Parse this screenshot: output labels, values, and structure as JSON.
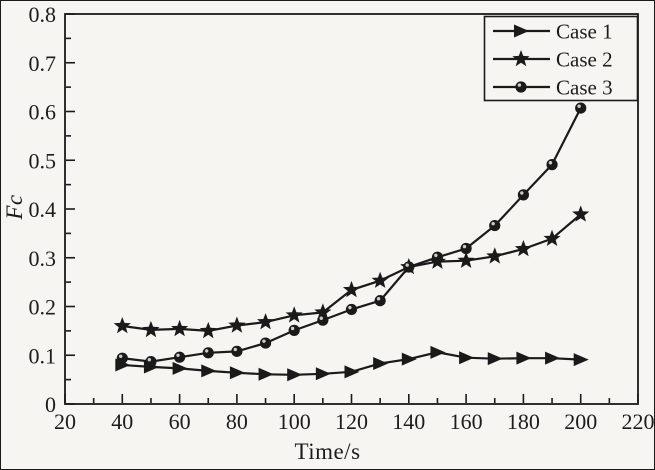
{
  "figure": {
    "background": "#f7f5f1",
    "ink_color": "#1a1a1a",
    "xlabel": "Time/s",
    "ylabel": "Fc"
  },
  "chart_data": {
    "type": "line",
    "title": "",
    "xlabel": "Time/s",
    "ylabel": "Fc",
    "xlim": [
      20,
      220
    ],
    "ylim": [
      0,
      0.8
    ],
    "x_major_tick": 20,
    "x_minor_tick": 10,
    "y_major_tick": 0.1,
    "y_minor_tick": 0.05,
    "x_tick_labels": [
      "20",
      "40",
      "60",
      "80",
      "100",
      "120",
      "140",
      "160",
      "180",
      "200",
      "220"
    ],
    "y_tick_labels": [
      "0",
      "0.1",
      "0.2",
      "0.3",
      "0.4",
      "0.5",
      "0.6",
      "0.7",
      "0.8"
    ],
    "grid": false,
    "legend_position": "top-right",
    "x": [
      40,
      50,
      60,
      70,
      80,
      90,
      100,
      110,
      120,
      130,
      140,
      150,
      160,
      170,
      180,
      190,
      200
    ],
    "series": [
      {
        "name": "Case 1",
        "marker": "triangle-right",
        "values": [
          0.08,
          0.076,
          0.073,
          0.068,
          0.064,
          0.061,
          0.06,
          0.062,
          0.066,
          0.083,
          0.092,
          0.106,
          0.095,
          0.093,
          0.094,
          0.094,
          0.091
        ]
      },
      {
        "name": "Case 2",
        "marker": "star",
        "values": [
          0.16,
          0.152,
          0.154,
          0.15,
          0.161,
          0.168,
          0.182,
          0.188,
          0.234,
          0.253,
          0.281,
          0.292,
          0.294,
          0.303,
          0.318,
          0.339,
          0.389
        ]
      },
      {
        "name": "Case 3",
        "marker": "sphere",
        "values": [
          0.094,
          0.087,
          0.096,
          0.105,
          0.108,
          0.125,
          0.151,
          0.172,
          0.194,
          0.212,
          0.281,
          0.301,
          0.319,
          0.366,
          0.429,
          0.491,
          0.607
        ]
      }
    ]
  }
}
